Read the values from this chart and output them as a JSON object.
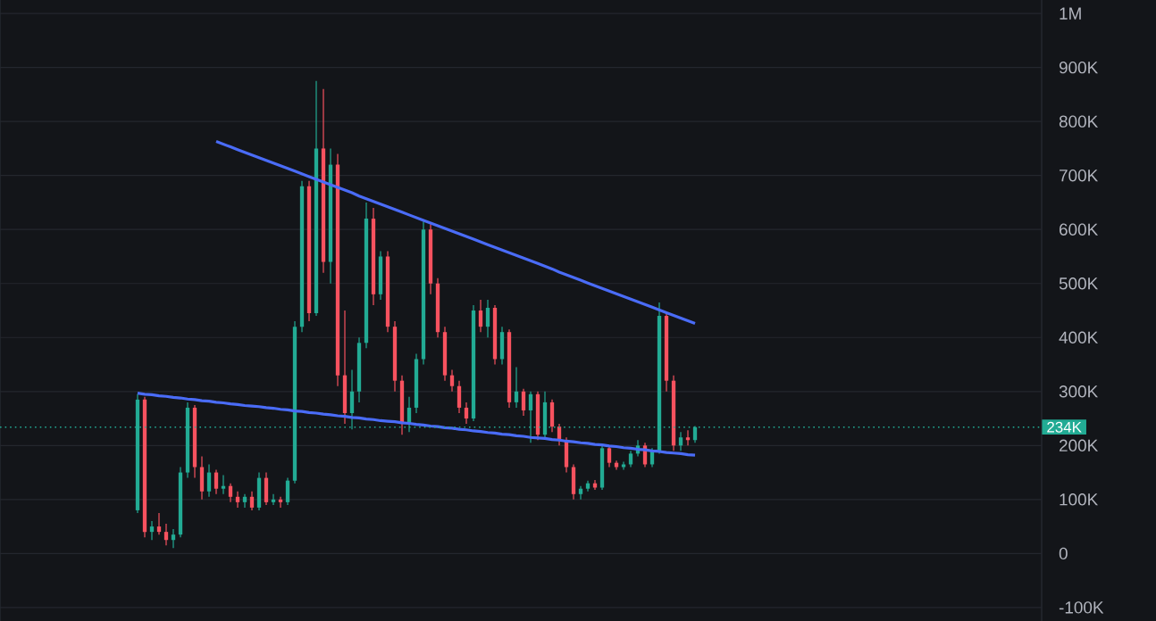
{
  "chart_data": {
    "type": "candlestick",
    "categories": [
      null,
      null,
      null,
      null,
      null,
      null,
      null,
      null,
      null,
      null,
      null,
      null,
      null,
      null,
      null,
      null,
      null,
      null,
      null,
      null,
      null,
      null,
      null,
      null,
      null,
      null,
      null,
      null,
      null,
      null,
      null,
      null,
      null,
      null,
      null,
      null,
      null,
      null,
      null,
      null,
      null,
      null,
      null,
      null,
      null,
      null,
      null,
      null,
      null,
      null,
      null,
      null,
      null,
      null,
      null,
      null,
      null,
      null,
      null,
      null,
      null,
      null,
      null,
      null,
      null,
      null,
      null,
      null,
      null,
      null,
      null,
      null,
      null,
      null,
      null,
      null,
      null,
      null,
      null
    ],
    "ohlc": [
      [
        80000,
        295000,
        75000,
        285000
      ],
      [
        285000,
        290000,
        30000,
        40000
      ],
      [
        40000,
        60000,
        25000,
        50000
      ],
      [
        50000,
        75000,
        35000,
        40000
      ],
      [
        40000,
        55000,
        15000,
        25000
      ],
      [
        25000,
        45000,
        10000,
        35000
      ],
      [
        35000,
        160000,
        30000,
        150000
      ],
      [
        150000,
        280000,
        140000,
        270000
      ],
      [
        270000,
        275000,
        140000,
        160000
      ],
      [
        160000,
        180000,
        100000,
        115000
      ],
      [
        115000,
        165000,
        105000,
        150000
      ],
      [
        150000,
        155000,
        110000,
        120000
      ],
      [
        120000,
        145000,
        110000,
        125000
      ],
      [
        125000,
        130000,
        95000,
        105000
      ],
      [
        105000,
        115000,
        85000,
        95000
      ],
      [
        95000,
        110000,
        85000,
        105000
      ],
      [
        105000,
        115000,
        80000,
        85000
      ],
      [
        85000,
        150000,
        80000,
        140000
      ],
      [
        140000,
        150000,
        90000,
        95000
      ],
      [
        95000,
        110000,
        90000,
        100000
      ],
      [
        100000,
        105000,
        85000,
        95000
      ],
      [
        95000,
        140000,
        90000,
        135000
      ],
      [
        135000,
        430000,
        130000,
        420000
      ],
      [
        420000,
        690000,
        410000,
        680000
      ],
      [
        680000,
        690000,
        430000,
        445000
      ],
      [
        445000,
        875000,
        440000,
        750000
      ],
      [
        750000,
        860000,
        520000,
        540000
      ],
      [
        540000,
        750000,
        500000,
        720000
      ],
      [
        720000,
        740000,
        310000,
        330000
      ],
      [
        330000,
        450000,
        240000,
        260000
      ],
      [
        260000,
        340000,
        230000,
        300000
      ],
      [
        300000,
        400000,
        280000,
        390000
      ],
      [
        390000,
        650000,
        380000,
        620000
      ],
      [
        620000,
        640000,
        460000,
        480000
      ],
      [
        480000,
        560000,
        470000,
        550000
      ],
      [
        550000,
        560000,
        410000,
        420000
      ],
      [
        420000,
        430000,
        300000,
        320000
      ],
      [
        320000,
        330000,
        220000,
        240000
      ],
      [
        240000,
        290000,
        225000,
        270000
      ],
      [
        270000,
        370000,
        260000,
        360000
      ],
      [
        360000,
        615000,
        350000,
        600000
      ],
      [
        600000,
        610000,
        480000,
        500000
      ],
      [
        500000,
        510000,
        400000,
        410000
      ],
      [
        410000,
        420000,
        320000,
        330000
      ],
      [
        330000,
        340000,
        300000,
        310000
      ],
      [
        310000,
        320000,
        260000,
        270000
      ],
      [
        270000,
        280000,
        240000,
        250000
      ],
      [
        250000,
        460000,
        245000,
        450000
      ],
      [
        450000,
        470000,
        410000,
        420000
      ],
      [
        420000,
        470000,
        400000,
        455000
      ],
      [
        455000,
        460000,
        350000,
        360000
      ],
      [
        360000,
        420000,
        350000,
        410000
      ],
      [
        410000,
        415000,
        270000,
        280000
      ],
      [
        280000,
        345000,
        270000,
        300000
      ],
      [
        300000,
        305000,
        255000,
        265000
      ],
      [
        265000,
        300000,
        205000,
        295000
      ],
      [
        295000,
        300000,
        210000,
        220000
      ],
      [
        220000,
        300000,
        215000,
        280000
      ],
      [
        280000,
        285000,
        225000,
        235000
      ],
      [
        235000,
        240000,
        200000,
        210000
      ],
      [
        210000,
        215000,
        150000,
        160000
      ],
      [
        160000,
        165000,
        100000,
        110000
      ],
      [
        110000,
        125000,
        100000,
        120000
      ],
      [
        120000,
        135000,
        115000,
        130000
      ],
      [
        130000,
        136000,
        118000,
        122000
      ],
      [
        122000,
        200000,
        118000,
        195000
      ],
      [
        195000,
        200000,
        160000,
        168000
      ],
      [
        168000,
        172000,
        155000,
        160000
      ],
      [
        160000,
        170000,
        155000,
        165000
      ],
      [
        165000,
        190000,
        160000,
        185000
      ],
      [
        185000,
        210000,
        180000,
        200000
      ],
      [
        200000,
        205000,
        160000,
        165000
      ],
      [
        165000,
        195000,
        160000,
        190000
      ],
      [
        190000,
        465000,
        185000,
        440000
      ],
      [
        440000,
        445000,
        300000,
        320000
      ],
      [
        320000,
        330000,
        190000,
        200000
      ],
      [
        200000,
        225000,
        190000,
        215000
      ],
      [
        215000,
        228000,
        200000,
        210000
      ],
      [
        210000,
        236000,
        205000,
        234000
      ]
    ],
    "colors": [
      "#22ab94",
      "#f7525f",
      "#22ab94",
      "#f7525f",
      "#f7525f",
      "#22ab94",
      "#22ab94",
      "#22ab94",
      "#f7525f",
      "#f7525f",
      "#22ab94",
      "#f7525f",
      "#22ab94",
      "#f7525f",
      "#f7525f",
      "#22ab94",
      "#f7525f",
      "#22ab94",
      "#f7525f",
      "#22ab94",
      "#f7525f",
      "#22ab94",
      "#22ab94",
      "#22ab94",
      "#f7525f",
      "#22ab94",
      "#f7525f",
      "#22ab94",
      "#f7525f",
      "#f7525f",
      "#22ab94",
      "#22ab94",
      "#22ab94",
      "#f7525f",
      "#22ab94",
      "#f7525f",
      "#f7525f",
      "#f7525f",
      "#22ab94",
      "#22ab94",
      "#22ab94",
      "#f7525f",
      "#f7525f",
      "#f7525f",
      "#f7525f",
      "#f7525f",
      "#f7525f",
      "#22ab94",
      "#f7525f",
      "#22ab94",
      "#f7525f",
      "#22ab94",
      "#f7525f",
      "#22ab94",
      "#f7525f",
      "#22ab94",
      "#f7525f",
      "#22ab94",
      "#f7525f",
      "#f7525f",
      "#f7525f",
      "#f7525f",
      "#22ab94",
      "#22ab94",
      "#f7525f",
      "#22ab94",
      "#f7525f",
      "#f7525f",
      "#22ab94",
      "#22ab94",
      "#22ab94",
      "#f7525f",
      "#22ab94",
      "#22ab94",
      "#f7525f",
      "#f7525f",
      "#22ab94",
      "#f7525f",
      "#22ab94"
    ],
    "series": [
      {
        "type": "line",
        "color": "#4a6cf7",
        "values": [
          null,
          null,
          null,
          null,
          null,
          null,
          null,
          null,
          null,
          null,
          null,
          763000,
          758000,
          753000,
          748000,
          743000,
          738000,
          733000,
          728000,
          723000,
          718000,
          713000,
          708000,
          703000,
          698000,
          693000,
          688000,
          683000,
          678000,
          673000,
          668000,
          662000,
          657000,
          652000,
          647000,
          642000,
          637000,
          632000,
          627000,
          622000,
          617000,
          612000,
          607000,
          602000,
          597000,
          592000,
          587000,
          582000,
          577000,
          572000,
          567000,
          562000,
          557000,
          552000,
          547000,
          542000,
          537000,
          532000,
          527000,
          521000,
          516000,
          511000,
          506000,
          501000,
          496000,
          491000,
          486000,
          481000,
          476000,
          471000,
          466000,
          461000,
          456000,
          451000,
          446000,
          441000,
          436000,
          431000,
          426000
        ]
      },
      {
        "type": "line",
        "color": "#4a6cf7",
        "values": [
          297000,
          295000,
          294000,
          292000,
          291000,
          289000,
          288000,
          286000,
          285000,
          283000,
          282000,
          280000,
          279000,
          277000,
          276000,
          274000,
          273000,
          272000,
          270000,
          269000,
          267000,
          266000,
          264000,
          263000,
          261000,
          260000,
          258000,
          257000,
          255000,
          254000,
          252000,
          251000,
          249000,
          248000,
          246000,
          245000,
          244000,
          242000,
          241000,
          239000,
          238000,
          236000,
          235000,
          233000,
          232000,
          230000,
          229000,
          227000,
          226000,
          224000,
          223000,
          221000,
          220000,
          218000,
          217000,
          215000,
          214000,
          213000,
          211000,
          210000,
          208000,
          207000,
          205000,
          204000,
          202000,
          201000,
          199000,
          198000,
          196000,
          195000,
          193000,
          192000,
          190000,
          189000,
          187000,
          186000,
          185000,
          183000,
          182000
        ]
      }
    ],
    "ylim": [
      -125000,
      1025000
    ],
    "yticks": [
      {
        "value": -100000,
        "label": "-100K"
      },
      {
        "value": 0,
        "label": "0"
      },
      {
        "value": 100000,
        "label": "100K"
      },
      {
        "value": 200000,
        "label": "200K"
      },
      {
        "value": 300000,
        "label": "300K"
      },
      {
        "value": 400000,
        "label": "400K"
      },
      {
        "value": 500000,
        "label": "500K"
      },
      {
        "value": 600000,
        "label": "600K"
      },
      {
        "value": 700000,
        "label": "700K"
      },
      {
        "value": 800000,
        "label": "800K"
      },
      {
        "value": 900000,
        "label": "900K"
      },
      {
        "value": 1000000,
        "label": "1M"
      }
    ],
    "tick_labels": "y",
    "grid": "y",
    "ref_lines": [
      {
        "axis": "y",
        "value": 234000,
        "label": "234K",
        "color": "#22ab94",
        "line_style": "dotted"
      }
    ]
  }
}
